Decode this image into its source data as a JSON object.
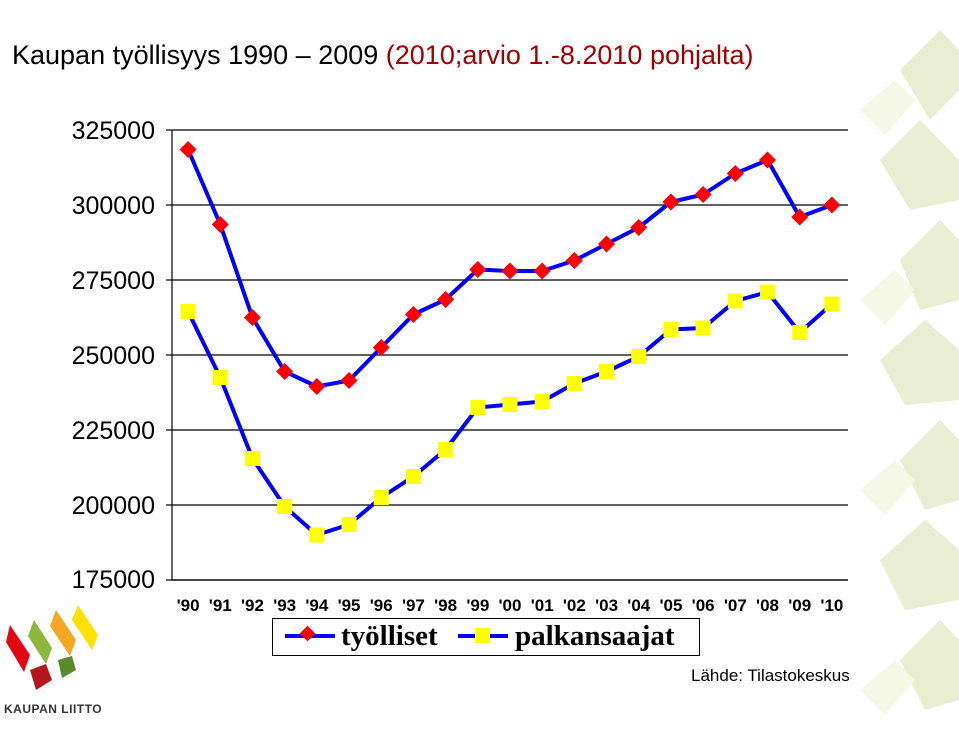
{
  "title_part1": "Kaupan työllisyys 1990 – 2009",
  "title_part2": "(2010;arvio 1.-8.2010 pohjalta)",
  "source": "Lähde: Tilastokeskus",
  "logo_text": "KAUPAN LIITTO",
  "colors": {
    "line": "#0000ff",
    "tyolliset_marker": "#ff0000",
    "palkansaajat_marker": "#ffff00",
    "title_highlight": "#a00000"
  },
  "chart_data": {
    "type": "line",
    "title": "Kaupan työllisyys 1990 – 2009 (2010;arvio 1.-8.2010 pohjalta)",
    "xlabel": "",
    "ylabel": "",
    "ylim": [
      175000,
      325000
    ],
    "yticks": [
      "325000",
      "300000",
      "275000",
      "250000",
      "225000",
      "200000",
      "175000"
    ],
    "categories": [
      "'90",
      "'91",
      "'92",
      "'93",
      "'94",
      "'95",
      "'96",
      "'97",
      "'98",
      "'99",
      "'00",
      "'01",
      "'02",
      "'03",
      "'04",
      "'05",
      "'06",
      "'07",
      "'08",
      "'09",
      "'10"
    ],
    "grid": true,
    "legend_position": "bottom",
    "series": [
      {
        "name": "työlliset",
        "marker": "diamond",
        "values": [
          318500,
          293500,
          262500,
          244500,
          239500,
          241500,
          252500,
          263500,
          268500,
          278500,
          278000,
          278000,
          281500,
          287000,
          292500,
          301000,
          303500,
          310500,
          315000,
          296000,
          300000
        ]
      },
      {
        "name": "palkansaajat",
        "marker": "square",
        "values": [
          264500,
          242500,
          215500,
          199500,
          190000,
          193500,
          202500,
          209500,
          218500,
          232500,
          233500,
          234500,
          240500,
          244500,
          249500,
          258500,
          259000,
          268000,
          271000,
          257500,
          267000
        ]
      }
    ]
  }
}
